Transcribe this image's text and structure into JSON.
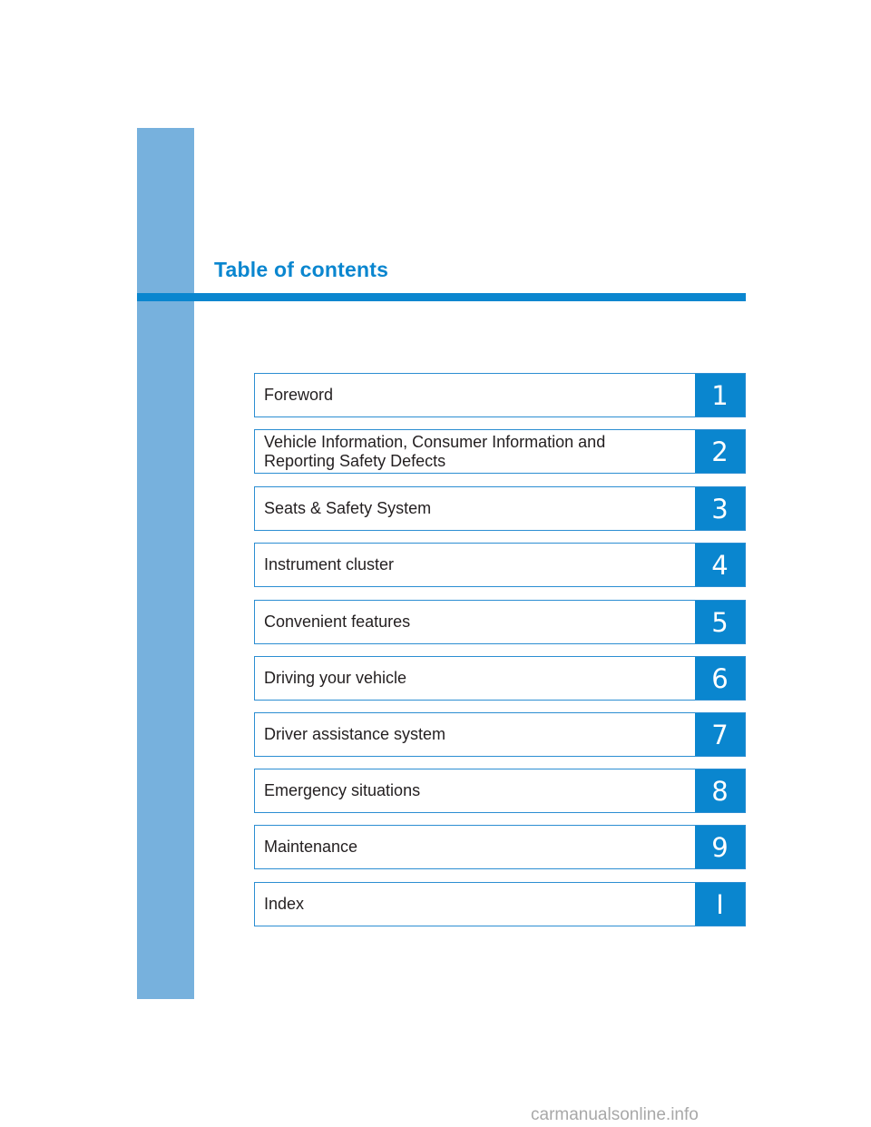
{
  "title": "Table of contents",
  "colors": {
    "accent": "#0a86cf",
    "side_band": "#77b1dd",
    "border": "#2c8ed2"
  },
  "items": [
    {
      "label": "Foreword",
      "num": "1"
    },
    {
      "label": "Vehicle Information, Consumer Information and Reporting Safety Defects",
      "num": "2"
    },
    {
      "label": "Seats & Safety System",
      "num": "3"
    },
    {
      "label": "Instrument cluster",
      "num": "4"
    },
    {
      "label": "Convenient features",
      "num": "5"
    },
    {
      "label": "Driving your vehicle",
      "num": "6"
    },
    {
      "label": "Driver assistance system",
      "num": "7"
    },
    {
      "label": "Emergency situations",
      "num": "8"
    },
    {
      "label": "Maintenance",
      "num": "9"
    },
    {
      "label": "Index",
      "num": "I"
    }
  ],
  "watermark": "carmanualsonline.info"
}
